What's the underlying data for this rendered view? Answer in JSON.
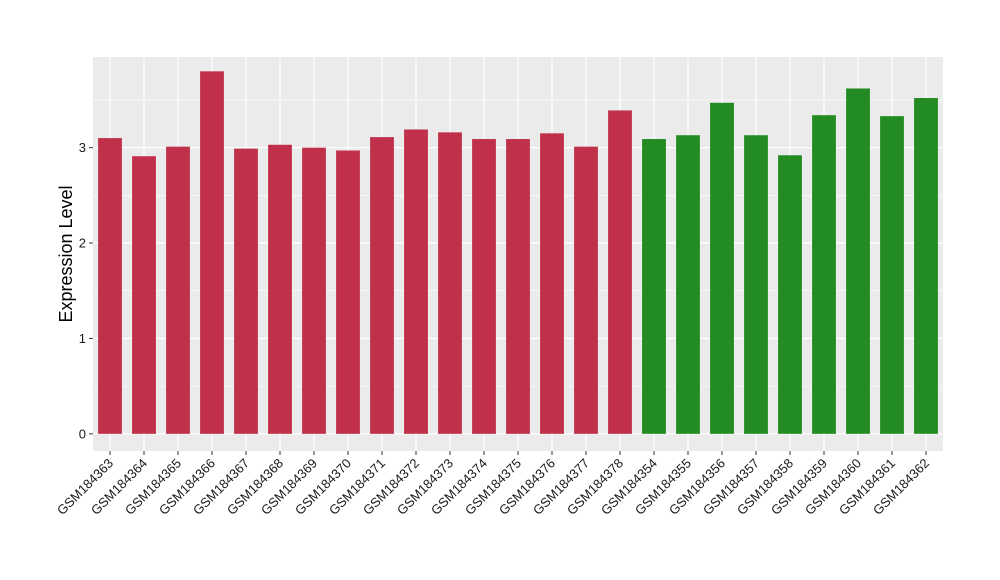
{
  "chart_data": {
    "type": "bar",
    "title": "",
    "xlabel": "",
    "ylabel": "Expression Level",
    "ylim": [
      -0.18,
      3.95
    ],
    "y_ticks": [
      0,
      1,
      2,
      3
    ],
    "grid": true,
    "categories": [
      "GSM184363",
      "GSM184364",
      "GSM184365",
      "GSM184366",
      "GSM184367",
      "GSM184368",
      "GSM184369",
      "GSM184370",
      "GSM184371",
      "GSM184372",
      "GSM184373",
      "GSM184374",
      "GSM184375",
      "GSM184376",
      "GSM184377",
      "GSM184378",
      "GSM184354",
      "GSM184355",
      "GSM184356",
      "GSM184357",
      "GSM184358",
      "GSM184359",
      "GSM184360",
      "GSM184361",
      "GSM184362"
    ],
    "values": [
      3.1,
      2.91,
      3.01,
      3.8,
      2.99,
      3.03,
      3.0,
      2.97,
      3.11,
      3.19,
      3.16,
      3.09,
      3.09,
      3.15,
      3.01,
      3.39,
      3.09,
      3.13,
      3.47,
      3.13,
      2.92,
      3.34,
      3.62,
      3.33,
      3.52
    ],
    "group_colors": [
      "#c0304a",
      "#c0304a",
      "#c0304a",
      "#c0304a",
      "#c0304a",
      "#c0304a",
      "#c0304a",
      "#c0304a",
      "#c0304a",
      "#c0304a",
      "#c0304a",
      "#c0304a",
      "#c0304a",
      "#c0304a",
      "#c0304a",
      "#c0304a",
      "#228b22",
      "#228b22",
      "#228b22",
      "#228b22",
      "#228b22",
      "#228b22",
      "#228b22",
      "#228b22",
      "#228b22"
    ],
    "panel_background": "#ebebeb",
    "grid_color": "#ffffff"
  }
}
